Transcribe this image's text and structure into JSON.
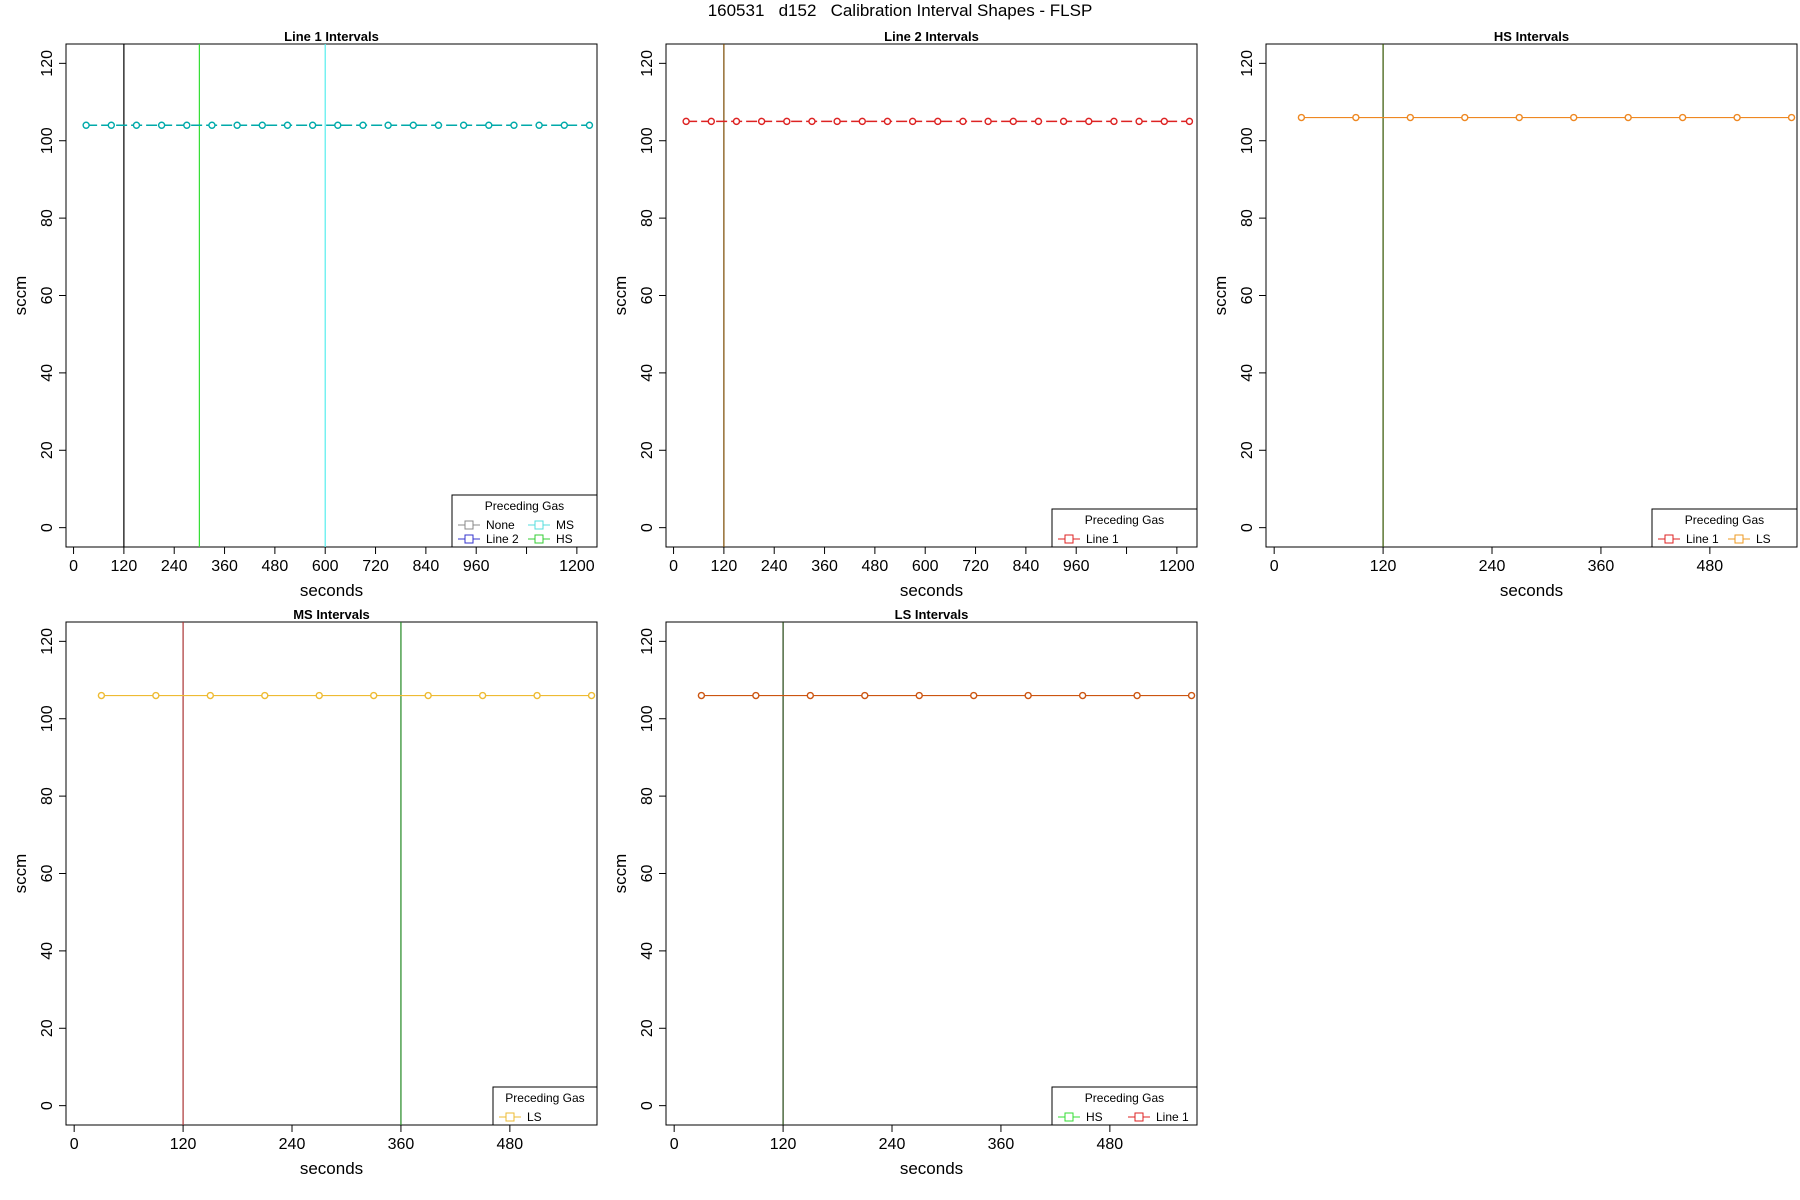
{
  "figure": {
    "title": "160531   d152   Calibration Interval Shapes - FLSP"
  },
  "chart_data": [
    {
      "type": "line",
      "title": "Line 1 Intervals",
      "xlabel": "seconds",
      "ylabel": "sccm",
      "xlim": [
        -18,
        1248
      ],
      "ylim": [
        -5,
        125
      ],
      "xticks": [
        0,
        120,
        240,
        360,
        480,
        600,
        720,
        840,
        960,
        1080,
        1200
      ],
      "xtick_labels": [
        "0",
        "120",
        "240",
        "360",
        "480",
        "600",
        "720",
        "840",
        "960",
        "",
        "1200"
      ],
      "yticks": [
        0,
        20,
        40,
        60,
        80,
        100,
        120
      ],
      "series": [
        {
          "color": "#00aaaa",
          "dashed": true,
          "x": [
            30,
            90,
            150,
            210,
            270,
            330,
            390,
            450,
            510,
            570,
            630,
            690,
            750,
            810,
            870,
            930,
            990,
            1050,
            1110,
            1170,
            1230
          ],
          "y": [
            104,
            104,
            104,
            104,
            104,
            104,
            104,
            104,
            104,
            104,
            104,
            104,
            104,
            104,
            104,
            104,
            104,
            104,
            104,
            104,
            104
          ]
        }
      ],
      "vlines": [
        {
          "x": 120,
          "color": "#000000"
        },
        {
          "x": 300,
          "color": "#33dd33"
        },
        {
          "x": 600,
          "color": "#55eeee"
        }
      ],
      "legend": {
        "title": "Preceding Gas",
        "placement": "bottom-right",
        "columns": 2,
        "entries": [
          {
            "label": "None",
            "color": "#888888"
          },
          {
            "label": "Line 2",
            "color": "#3333cc"
          },
          {
            "label": "MS",
            "color": "#55dddd"
          },
          {
            "label": "HS",
            "color": "#33cc33"
          }
        ]
      }
    },
    {
      "type": "line",
      "title": "Line 2 Intervals",
      "xlabel": "seconds",
      "ylabel": "sccm",
      "xlim": [
        -18,
        1248
      ],
      "ylim": [
        -5,
        125
      ],
      "xticks": [
        0,
        120,
        240,
        360,
        480,
        600,
        720,
        840,
        960,
        1080,
        1200
      ],
      "xtick_labels": [
        "0",
        "120",
        "240",
        "360",
        "480",
        "600",
        "720",
        "840",
        "960",
        "",
        "1200"
      ],
      "yticks": [
        0,
        20,
        40,
        60,
        80,
        100,
        120
      ],
      "series": [
        {
          "color": "#dd2222",
          "dashed": true,
          "x": [
            30,
            90,
            150,
            210,
            270,
            330,
            390,
            450,
            510,
            570,
            630,
            690,
            750,
            810,
            870,
            930,
            990,
            1050,
            1110,
            1170,
            1230
          ],
          "y": [
            105,
            105,
            105,
            105,
            105,
            105,
            105,
            105,
            105,
            105,
            105,
            105,
            105,
            105,
            105,
            105,
            105,
            105,
            105,
            105,
            105
          ]
        }
      ],
      "vlines": [
        {
          "x": 120,
          "color": "#7a4a00"
        }
      ],
      "legend": {
        "title": "Preceding Gas",
        "placement": "bottom-right",
        "columns": 1,
        "entries": [
          {
            "label": "Line 1",
            "color": "#dd2222"
          }
        ]
      }
    },
    {
      "type": "line",
      "title": "HS Intervals",
      "xlabel": "seconds",
      "ylabel": "sccm",
      "xlim": [
        -9,
        576
      ],
      "ylim": [
        -5,
        125
      ],
      "xticks": [
        0,
        120,
        240,
        360,
        480
      ],
      "xtick_labels": [
        "0",
        "120",
        "240",
        "360",
        "480"
      ],
      "yticks": [
        0,
        20,
        40,
        60,
        80,
        100,
        120
      ],
      "series": [
        {
          "color": "#ee8822",
          "dashed": false,
          "x": [
            30,
            90,
            150,
            210,
            270,
            330,
            390,
            450,
            510,
            570
          ],
          "y": [
            106,
            106,
            106,
            106,
            106,
            106,
            106,
            106,
            106,
            106
          ]
        }
      ],
      "vlines": [
        {
          "x": 120,
          "color": "#335500"
        }
      ],
      "legend": {
        "title": "Preceding Gas",
        "placement": "bottom-right",
        "columns": 2,
        "entries": [
          {
            "label": "Line 1",
            "color": "#dd2222"
          },
          {
            "label": "LS",
            "color": "#ee9922"
          }
        ]
      }
    },
    {
      "type": "line",
      "title": "MS Intervals",
      "xlabel": "seconds",
      "ylabel": "sccm",
      "xlim": [
        -9,
        576
      ],
      "ylim": [
        -5,
        125
      ],
      "xticks": [
        0,
        120,
        240,
        360,
        480
      ],
      "xtick_labels": [
        "0",
        "120",
        "240",
        "360",
        "480"
      ],
      "yticks": [
        0,
        20,
        40,
        60,
        80,
        100,
        120
      ],
      "series": [
        {
          "color": "#eebb33",
          "dashed": false,
          "x": [
            30,
            90,
            150,
            210,
            270,
            330,
            390,
            450,
            510,
            570
          ],
          "y": [
            106,
            106,
            106,
            106,
            106,
            106,
            106,
            106,
            106,
            106
          ]
        }
      ],
      "vlines": [
        {
          "x": 120,
          "color": "#aa3333"
        },
        {
          "x": 360,
          "color": "#228822"
        }
      ],
      "legend": {
        "title": "Preceding Gas",
        "placement": "bottom-right",
        "columns": 1,
        "entries": [
          {
            "label": "LS",
            "color": "#eebb33"
          }
        ]
      }
    },
    {
      "type": "line",
      "title": "LS Intervals",
      "xlabel": "seconds",
      "ylabel": "sccm",
      "xlim": [
        -9,
        576
      ],
      "ylim": [
        -5,
        125
      ],
      "xticks": [
        0,
        120,
        240,
        360,
        480
      ],
      "xtick_labels": [
        "0",
        "120",
        "240",
        "360",
        "480"
      ],
      "yticks": [
        0,
        20,
        40,
        60,
        80,
        100,
        120
      ],
      "series": [
        {
          "color": "#cc5511",
          "dashed": false,
          "x": [
            30,
            90,
            150,
            210,
            270,
            330,
            390,
            450,
            510,
            570
          ],
          "y": [
            106,
            106,
            106,
            106,
            106,
            106,
            106,
            106,
            106,
            106
          ]
        }
      ],
      "vlines": [
        {
          "x": 120,
          "color": "#224411"
        }
      ],
      "legend": {
        "title": "Preceding Gas",
        "placement": "bottom-right",
        "columns": 2,
        "entries": [
          {
            "label": "HS",
            "color": "#33dd33"
          },
          {
            "label": "Line 1",
            "color": "#dd2222"
          }
        ]
      }
    }
  ]
}
